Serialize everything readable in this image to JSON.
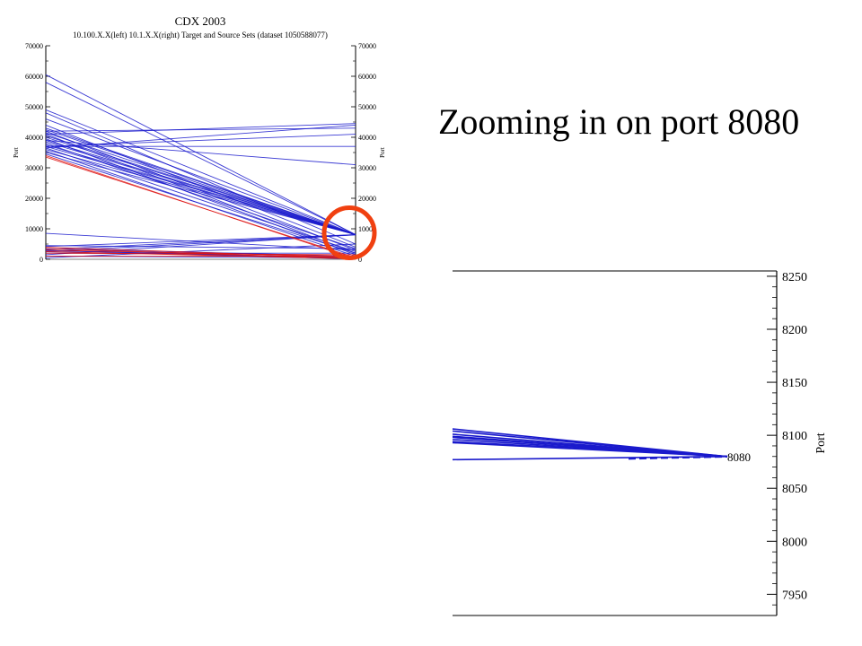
{
  "slide": {
    "title": "Zooming in on port 8080"
  },
  "chart_data": [
    {
      "type": "line",
      "title": "CDX 2003",
      "subtitle": "10.100.X.X(left) 10.1.X.X(right) Target and Source Sets  (dataset 1050588077)",
      "ylabel_left": "Port",
      "ylabel_right": "Port",
      "ylim": [
        0,
        70000
      ],
      "yticks": [
        0,
        10000,
        20000,
        30000,
        40000,
        50000,
        60000,
        70000
      ],
      "grid": false,
      "highlight": "circle around port 8080 on right axis",
      "colors": {
        "primary": "#1a1acc",
        "secondary": "#dd1111",
        "highlight": "#f04010"
      },
      "series": [
        {
          "color": "#1a1acc",
          "segments": [
            [
              60500,
              8080
            ],
            [
              58000,
              8080
            ],
            [
              49000,
              8080
            ],
            [
              48000,
              5000
            ],
            [
              46000,
              8080
            ],
            [
              44000,
              4000
            ],
            [
              43000,
              8080
            ],
            [
              42500,
              8080
            ],
            [
              42000,
              3000
            ],
            [
              41500,
              8080
            ],
            [
              41000,
              2000
            ],
            [
              40500,
              8080
            ],
            [
              40000,
              8080
            ],
            [
              39500,
              1500
            ],
            [
              39000,
              8080
            ],
            [
              38500,
              8080
            ],
            [
              38000,
              3500
            ],
            [
              37500,
              8080
            ],
            [
              37000,
              8080
            ],
            [
              36500,
              2500
            ],
            [
              36000,
              8080
            ],
            [
              35500,
              1000
            ],
            [
              35000,
              8080
            ],
            [
              34500,
              2000
            ],
            [
              42000,
              43000
            ],
            [
              41000,
              44500
            ],
            [
              36500,
              44000
            ],
            [
              37000,
              41000
            ],
            [
              39000,
              31000
            ],
            [
              37000,
              37000
            ],
            [
              8500,
              3000
            ],
            [
              4200,
              8080
            ],
            [
              3200,
              8080
            ],
            [
              2500,
              8000
            ],
            [
              1500,
              8080
            ],
            [
              3500,
              1000
            ],
            [
              2800,
              500
            ],
            [
              4500,
              3500
            ],
            [
              2000,
              2000
            ],
            [
              1000,
              500
            ],
            [
              500,
              5000
            ],
            [
              3000,
              100
            ]
          ]
        },
        {
          "color": "#dd1111",
          "segments": [
            [
              34000,
              100
            ],
            [
              33500,
              500
            ],
            [
              3000,
              1000
            ],
            [
              3500,
              200
            ],
            [
              2000,
              1500
            ],
            [
              4000,
              500
            ],
            [
              1000,
              1000
            ],
            [
              2500,
              200
            ]
          ]
        }
      ]
    },
    {
      "type": "line",
      "title": "",
      "ylabel": "Port",
      "ylim": [
        7930,
        8255
      ],
      "yticks": [
        7950,
        8000,
        8050,
        8100,
        8150,
        8200,
        8250
      ],
      "annotation": "8080",
      "grid": false,
      "colors": {
        "primary": "#1a1acc"
      },
      "series": [
        {
          "color": "#1a1acc",
          "converge_to": 8080,
          "left_values": [
            8106,
            8104,
            8101,
            8099,
            8098,
            8096,
            8094,
            8093,
            8077
          ]
        }
      ]
    }
  ]
}
